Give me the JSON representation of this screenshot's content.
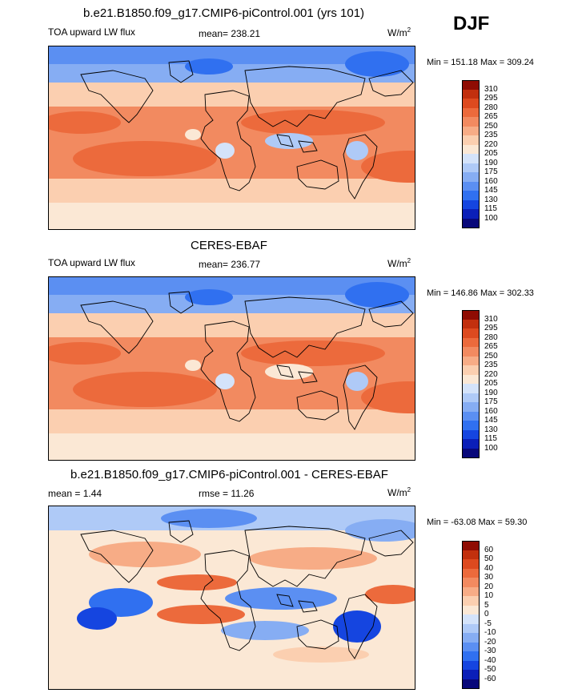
{
  "season": "DJF",
  "colors": {
    "abs": [
      "#08087a",
      "#0b1fb8",
      "#1545e0",
      "#3070f0",
      "#5b8ff2",
      "#86adf3",
      "#afcaf7",
      "#d4e3fa",
      "#fbe8d5",
      "#fbcfb0",
      "#f7ac86",
      "#f28a60",
      "#ec6a3c",
      "#dd4a1f",
      "#c2300e",
      "#8f0c03"
    ],
    "diff": [
      "#08087a",
      "#0b1fb8",
      "#1545e0",
      "#3070f0",
      "#5b8ff2",
      "#86adf3",
      "#afcaf7",
      "#d4e3fa",
      "#fbe8d5",
      "#fbcfb0",
      "#f7ac86",
      "#f28a60",
      "#ec6a3c",
      "#dd4a1f",
      "#c2300e",
      "#8f0c03"
    ]
  },
  "panels": [
    {
      "title": "b.e21.B1850.f09_g17.CMIP6-piControl.001 (yrs 101)",
      "left_label": "TOA upward LW flux",
      "mean_label": "mean= 238.21",
      "units": "W/m",
      "units_sup": "2",
      "minmax": "Min = 151.18 Max = 309.24",
      "levels": [
        "310",
        "295",
        "280",
        "265",
        "250",
        "235",
        "220",
        "205",
        "190",
        "175",
        "160",
        "145",
        "130",
        "115",
        "100"
      ]
    },
    {
      "title": "CERES-EBAF",
      "left_label": "TOA upward LW flux",
      "mean_label": "mean= 236.77",
      "units": "W/m",
      "units_sup": "2",
      "minmax": "Min = 146.86 Max = 302.33",
      "levels": [
        "310",
        "295",
        "280",
        "265",
        "250",
        "235",
        "220",
        "205",
        "190",
        "175",
        "160",
        "145",
        "130",
        "115",
        "100"
      ]
    },
    {
      "title": "b.e21.B1850.f09_g17.CMIP6-piControl.001 - CERES-EBAF",
      "left_label": "mean =   1.44",
      "mean_label": "rmse =  11.26",
      "units": "W/m",
      "units_sup": "2",
      "minmax": "Min = -63.08 Max =  59.30",
      "levels": [
        "60",
        "50",
        "40",
        "30",
        "20",
        "10",
        "5",
        "0",
        "-5",
        "-10",
        "-20",
        "-30",
        "-40",
        "-50",
        "-60"
      ]
    }
  ]
}
